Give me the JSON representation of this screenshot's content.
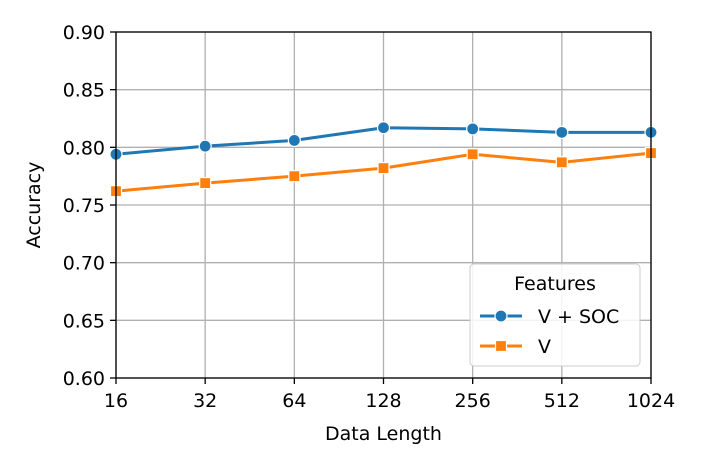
{
  "chart_data": {
    "type": "line",
    "title": "",
    "xlabel": "Data Length",
    "ylabel": "Accuracy",
    "categories": [
      "16",
      "32",
      "64",
      "128",
      "256",
      "512",
      "1024"
    ],
    "x": [
      16,
      32,
      64,
      128,
      256,
      512,
      1024
    ],
    "x_scale": "log2",
    "ylim": [
      0.6,
      0.9
    ],
    "yticks": [
      "0.60",
      "0.65",
      "0.70",
      "0.75",
      "0.80",
      "0.85",
      "0.90"
    ],
    "grid": true,
    "legend": {
      "title": "Features",
      "placement": "lower-right"
    },
    "series": [
      {
        "name": "V + SOC",
        "color": "#1f77b4",
        "marker": "circle",
        "values": [
          0.794,
          0.801,
          0.806,
          0.817,
          0.816,
          0.813,
          0.813
        ]
      },
      {
        "name": "V",
        "color": "#ff7f0e",
        "marker": "square",
        "values": [
          0.762,
          0.769,
          0.775,
          0.782,
          0.794,
          0.787,
          0.795
        ]
      }
    ]
  }
}
